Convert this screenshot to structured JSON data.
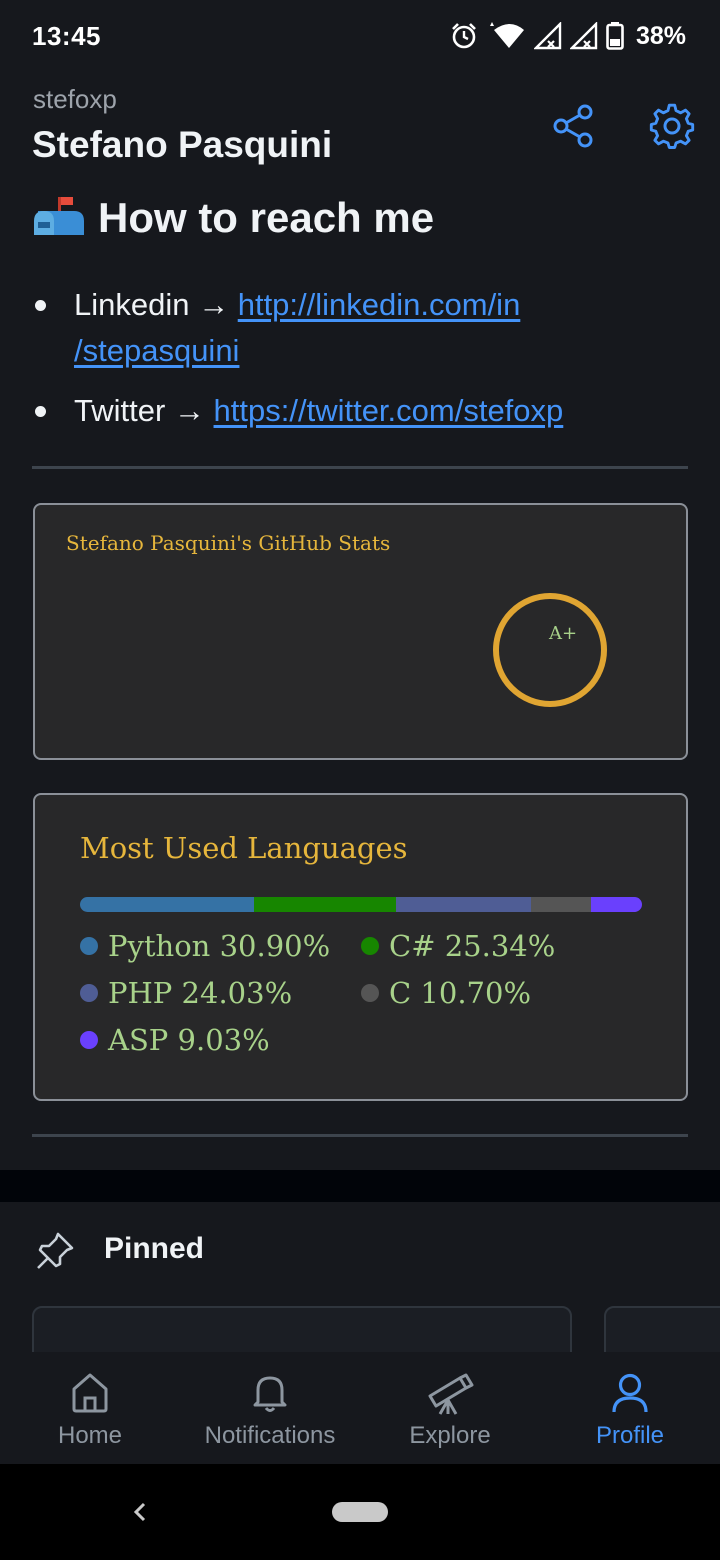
{
  "status_bar": {
    "time": "13:45",
    "battery": "38%",
    "icons": [
      "alarm-icon",
      "wifi-icon",
      "signal-icon",
      "signal-icon",
      "battery-icon"
    ]
  },
  "header": {
    "username": "stefoxp",
    "display_name": "Stefano Pasquini",
    "share_icon": "share-icon",
    "settings_icon": "gear-icon"
  },
  "readme": {
    "heading_emoji": "mailbox-icon",
    "heading": "How to reach me",
    "contacts": [
      {
        "label": "Linkedin →",
        "link_line1": "http://linkedin.com/in",
        "link_line2": "/stepasquini"
      },
      {
        "label": "Twitter →",
        "link": "https://twitter.com/stefoxp"
      }
    ],
    "stats_card": {
      "title": "Stefano Pasquini's GitHub Stats",
      "rank": "A+"
    },
    "languages_card": {
      "title": "Most Used Languages",
      "languages": [
        {
          "name": "Python",
          "percent": "30.90%",
          "value": 30.9,
          "color": "#3572A5"
        },
        {
          "name": "C#",
          "percent": "25.34%",
          "value": 25.34,
          "color": "#178600"
        },
        {
          "name": "PHP",
          "percent": "24.03%",
          "value": 24.03,
          "color": "#4F5D95"
        },
        {
          "name": "C",
          "percent": "10.70%",
          "value": 10.7,
          "color": "#555555"
        },
        {
          "name": "ASP",
          "percent": "9.03%",
          "value": 9.03,
          "color": "#6a40fd"
        }
      ]
    }
  },
  "pinned": {
    "title": "Pinned",
    "icon": "pin-icon"
  },
  "bottom_nav": {
    "items": [
      {
        "label": "Home",
        "icon": "home-icon",
        "active": false
      },
      {
        "label": "Notifications",
        "icon": "bell-icon",
        "active": false
      },
      {
        "label": "Explore",
        "icon": "telescope-icon",
        "active": false
      },
      {
        "label": "Profile",
        "icon": "person-icon",
        "active": true
      }
    ]
  },
  "colors": {
    "accent": "#4493f8",
    "background": "#16181d",
    "card_title": "#e6b63c",
    "card_text": "#a8d28a"
  }
}
